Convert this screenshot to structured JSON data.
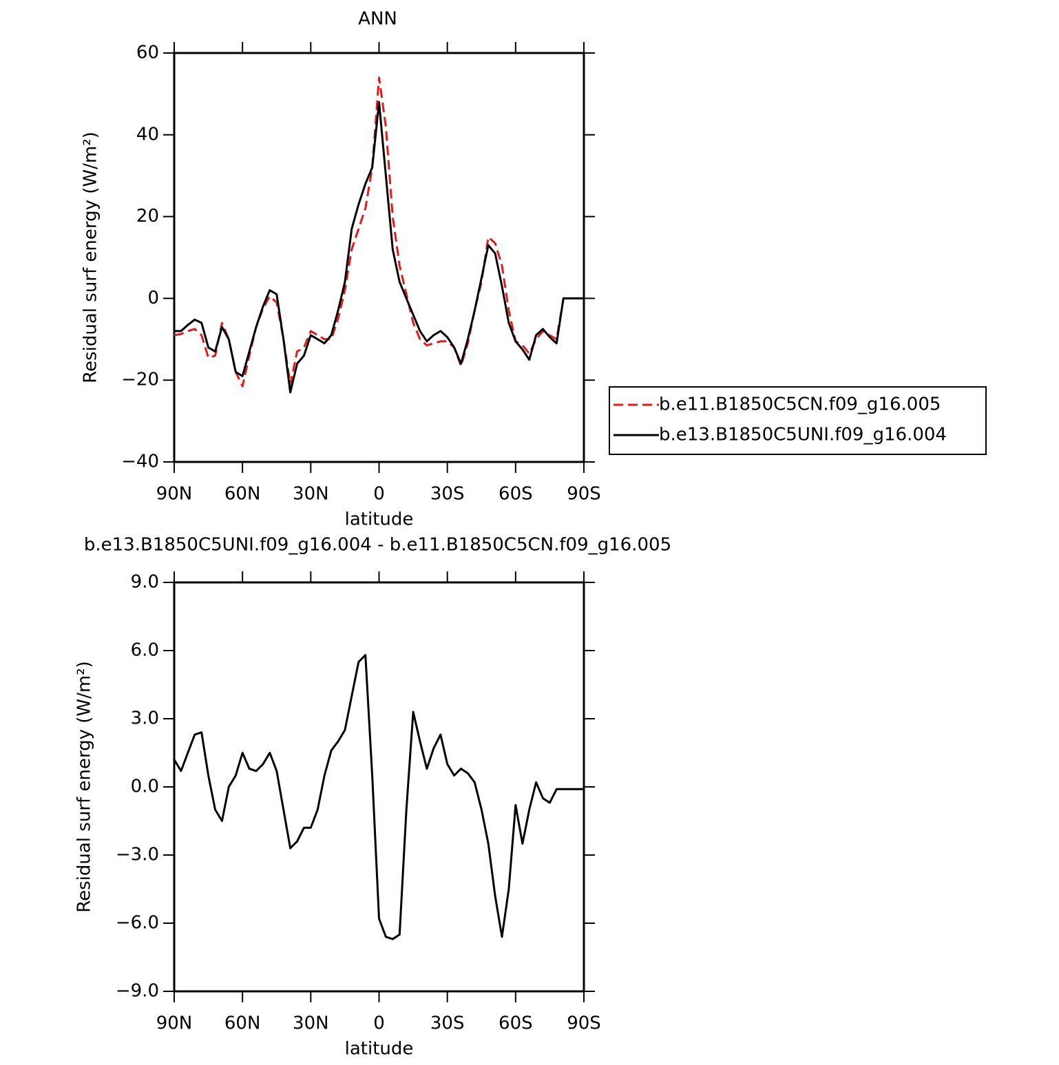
{
  "chart_data": [
    {
      "type": "line",
      "title": "ANN",
      "x_label": "latitude",
      "y_label": "Residual surf energy (W/m²)",
      "x": [
        90,
        87,
        84,
        81,
        78,
        75,
        72,
        69,
        66,
        63,
        60,
        57,
        54,
        51,
        48,
        45,
        42,
        39,
        36,
        33,
        30,
        27,
        24,
        21,
        18,
        15,
        12,
        9,
        6,
        3,
        0,
        -3,
        -6,
        -9,
        -12,
        -15,
        -18,
        -21,
        -24,
        -27,
        -30,
        -33,
        -36,
        -39,
        -42,
        -45,
        -48,
        -51,
        -54,
        -57,
        -60,
        -63,
        -66,
        -69,
        -72,
        -75,
        -78,
        -81,
        -84,
        -87,
        -90
      ],
      "xlim": [
        90,
        -90
      ],
      "xticks": [
        {
          "value": 90,
          "label": "90N"
        },
        {
          "value": 60,
          "label": "60N"
        },
        {
          "value": 30,
          "label": "30N"
        },
        0,
        {
          "value": -30,
          "label": "30S"
        },
        {
          "value": -60,
          "label": "60S"
        },
        {
          "value": -90,
          "label": "90S"
        }
      ],
      "ylim": [
        -40,
        60
      ],
      "yticks": [
        {
          "value": -40,
          "label": "−40"
        },
        {
          "value": -20,
          "label": "−20"
        },
        0,
        20,
        40,
        60
      ],
      "legend": "right",
      "series": [
        {
          "name": "b.e11.B1850C5CN.f09_g16.005",
          "color": "#e41a1c",
          "dash": true,
          "values": [
            -9,
            -8.7,
            -8,
            -7.5,
            -9,
            -14.5,
            -14,
            -6,
            -10,
            -18,
            -21.5,
            -14,
            -7,
            -2.5,
            0.5,
            -1,
            -10,
            -21,
            -13,
            -12,
            -8,
            -9,
            -10,
            -10,
            -5,
            2,
            12,
            17,
            22,
            32,
            54,
            42,
            20,
            8,
            1,
            -6,
            -10,
            -11.5,
            -11,
            -10.5,
            -10.5,
            -12,
            -16.5,
            -11,
            -3,
            4,
            15,
            13.5,
            8,
            -3,
            -10.5,
            -11.5,
            -13.5,
            -10,
            -8,
            -9,
            -10,
            0,
            0,
            0,
            0
          ]
        },
        {
          "name": "b.e13.B1850C5UNI.f09_g16.004",
          "color": "#000000",
          "dash": false,
          "values": [
            -8,
            -8,
            -6.5,
            -5.2,
            -6,
            -12,
            -13,
            -7,
            -10,
            -18,
            -19,
            -13,
            -7,
            -2,
            2,
            1,
            -10,
            -23,
            -16,
            -14,
            -9,
            -10,
            -11,
            -9,
            -3,
            4,
            17,
            23,
            28,
            32,
            48,
            30,
            12,
            4,
            0,
            -4,
            -8,
            -10.5,
            -9,
            -8,
            -9.5,
            -12,
            -16,
            -10,
            -3,
            5,
            13,
            11,
            3,
            -6,
            -10.5,
            -12.5,
            -15,
            -9,
            -7.5,
            -9.5,
            -11,
            0,
            0,
            0,
            0
          ]
        }
      ]
    },
    {
      "type": "line",
      "title": "b.e13.B1850C5UNI.f09_g16.004 - b.e11.B1850C5CN.f09_g16.005",
      "x_label": "latitude",
      "y_label": "Residual surf energy (W/m²)",
      "x": [
        90,
        87,
        84,
        81,
        78,
        75,
        72,
        69,
        66,
        63,
        60,
        57,
        54,
        51,
        48,
        45,
        42,
        39,
        36,
        33,
        30,
        27,
        24,
        21,
        18,
        15,
        12,
        9,
        6,
        3,
        0,
        -3,
        -6,
        -9,
        -12,
        -15,
        -18,
        -21,
        -24,
        -27,
        -30,
        -33,
        -36,
        -39,
        -42,
        -45,
        -48,
        -51,
        -54,
        -57,
        -60,
        -63,
        -66,
        -69,
        -72,
        -75,
        -78,
        -81,
        -84,
        -87,
        -90
      ],
      "xlim": [
        90,
        -90
      ],
      "xticks": [
        {
          "value": 90,
          "label": "90N"
        },
        {
          "value": 60,
          "label": "60N"
        },
        {
          "value": 30,
          "label": "30N"
        },
        0,
        {
          "value": -30,
          "label": "30S"
        },
        {
          "value": -60,
          "label": "60S"
        },
        {
          "value": -90,
          "label": "90S"
        }
      ],
      "ylim": [
        -9,
        9
      ],
      "yticks": [
        {
          "value": -9,
          "label": "−9.0"
        },
        {
          "value": -6,
          "label": "−6.0"
        },
        {
          "value": -3,
          "label": "−3.0"
        },
        {
          "value": 0,
          "label": "0.0"
        },
        {
          "value": 3,
          "label": "3.0"
        },
        {
          "value": 6,
          "label": "6.0"
        },
        {
          "value": 9,
          "label": "9.0"
        }
      ],
      "series": [
        {
          "color": "#000000",
          "values": [
            1.2,
            0.7,
            1.5,
            2.3,
            2.4,
            0.5,
            -1,
            -1.5,
            0,
            0.5,
            1.5,
            0.8,
            0.7,
            1,
            1.5,
            0.7,
            -1,
            -2.7,
            -2.4,
            -1.8,
            -1.8,
            -1,
            0.5,
            1.6,
            2,
            2.5,
            4,
            5.5,
            5.8,
            0.5,
            -5.8,
            -6.6,
            -6.7,
            -6.5,
            -1,
            3.3,
            2,
            0.8,
            1.7,
            2.3,
            1,
            0.5,
            0.8,
            0.6,
            0.2,
            -1,
            -2.5,
            -4.8,
            -6.6,
            -4.5,
            -0.8,
            -2.5,
            -1,
            0.2,
            -0.5,
            -0.7,
            -0.1,
            -0.1,
            -0.1,
            -0.1,
            -0.1
          ]
        }
      ]
    }
  ]
}
